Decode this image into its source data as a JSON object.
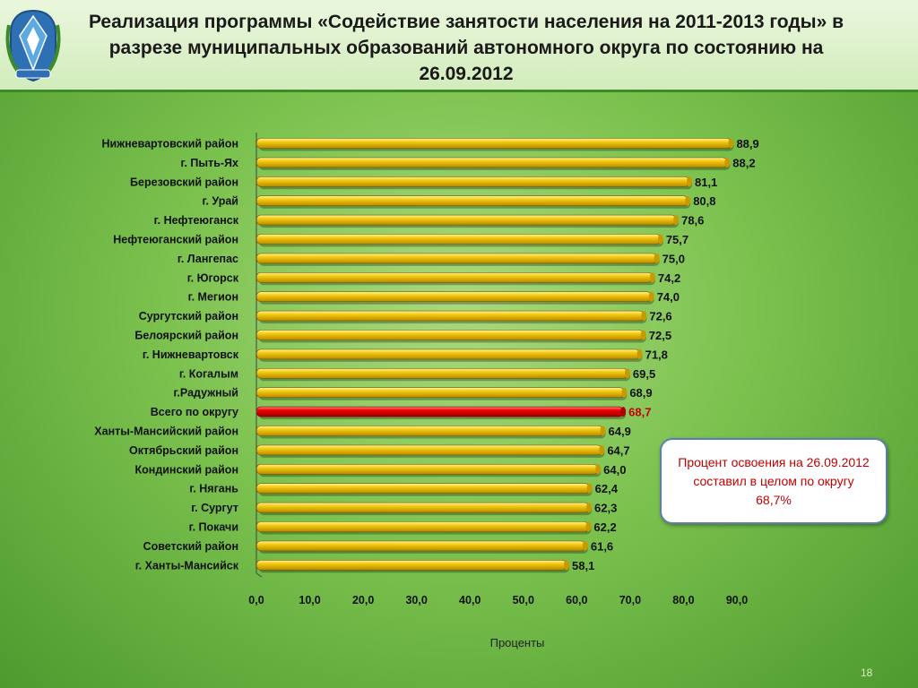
{
  "header": {
    "title": "Реализация программы «Содействие занятости населения на 2011-2013 годы» в разрезе муниципальных образований автономного округа  по состоянию на 26.09.2012"
  },
  "callout": {
    "text": "Процент освоения на 26.09.2012 составил в целом по округу 68,7%"
  },
  "page_number": "18",
  "colors": {
    "bar": "#f2c200",
    "bar_highlight": "#e00000",
    "background": "#7cc24f"
  },
  "chart_data": {
    "type": "bar",
    "orientation": "horizontal",
    "categories": [
      "Нижневартовский район",
      "г. Пыть-Ях",
      "Березовский район",
      "г. Урай",
      "г. Нефтеюганск",
      "Нефтеюганский район",
      "г. Лангепас",
      "г. Югорск",
      "г. Мегион",
      "Сургутский район",
      "Белоярский  район",
      "г. Нижневартовск",
      "г. Когалым",
      "г.Радужный",
      "Всего по округу",
      "Ханты-Мансийский район",
      "Октябрьский район",
      "Кондинский район",
      "г. Нягань",
      "г. Сургут",
      "г. Покачи",
      "Советский район",
      "г. Ханты-Мансийск"
    ],
    "values": [
      88.9,
      88.2,
      81.1,
      80.8,
      78.6,
      75.7,
      75.0,
      74.2,
      74.0,
      72.6,
      72.5,
      71.8,
      69.5,
      68.9,
      68.7,
      64.9,
      64.7,
      64.0,
      62.4,
      62.3,
      62.2,
      61.6,
      58.1
    ],
    "value_labels": [
      "88,9",
      "88,2",
      "81,1",
      "80,8",
      "78,6",
      "75,7",
      "75,0",
      "74,2",
      "74,0",
      "72,6",
      "72,5",
      "71,8",
      "69,5",
      "68,9",
      "68,7",
      "64,9",
      "64,7",
      "64,0",
      "62,4",
      "62,3",
      "62,2",
      "61,6",
      "58,1"
    ],
    "highlight_category": "Всего по округу",
    "xlim": [
      0,
      90
    ],
    "xticks": [
      "0,0",
      "10,0",
      "20,0",
      "30,0",
      "40,0",
      "50,0",
      "60,0",
      "70,0",
      "80,0",
      "90,0"
    ],
    "xlabel": "Проценты",
    "ylabel": "",
    "grid": false,
    "legend": "none"
  }
}
